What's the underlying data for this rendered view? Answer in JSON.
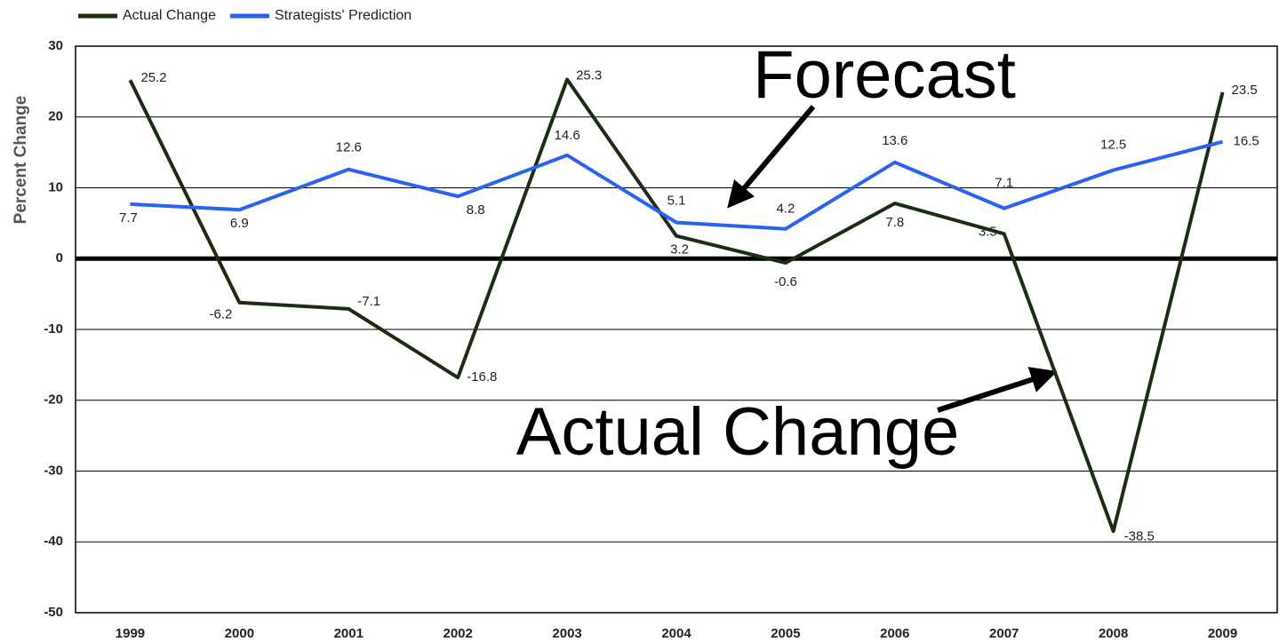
{
  "chart_data": {
    "type": "line",
    "y_label": "Percent Change",
    "categories": [
      "1999",
      "2000",
      "2001",
      "2002",
      "2003",
      "2004",
      "2005",
      "2006",
      "2007",
      "2008",
      "2009"
    ],
    "series": [
      {
        "name": "Actual Change",
        "color": "#1b2e12",
        "values": [
          25.2,
          -6.2,
          -7.1,
          -16.8,
          25.3,
          3.2,
          -0.6,
          7.8,
          3.5,
          -38.5,
          23.5
        ]
      },
      {
        "name": "Strategists' Prediction",
        "color": "#2a62f2",
        "values": [
          7.7,
          6.9,
          12.6,
          8.8,
          14.6,
          5.1,
          4.2,
          13.6,
          7.1,
          12.5,
          16.5
        ]
      }
    ],
    "annotations": [
      "Forecast",
      "Actual Change"
    ],
    "ylim": [
      -50,
      30
    ],
    "yticks": [
      -50,
      -40,
      -30,
      -20,
      -10,
      0,
      10,
      20,
      30
    ],
    "grid": true,
    "legend": "top-left"
  }
}
